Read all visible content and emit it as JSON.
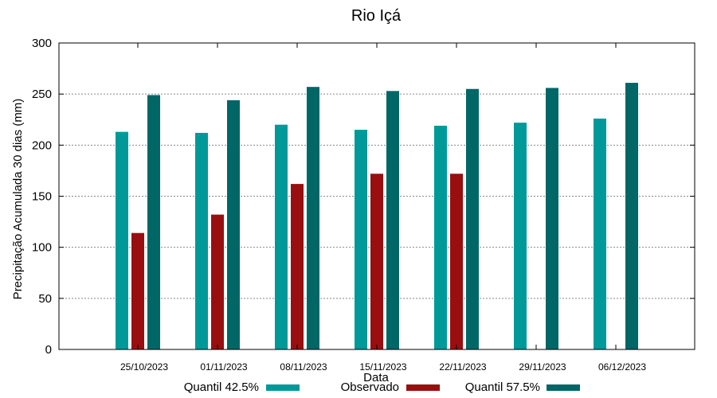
{
  "chart_data": {
    "type": "bar",
    "title": "Rio Içá",
    "xlabel": "Data",
    "ylabel": "Precipitação Acumulada 30 dias (mm)",
    "ylim": [
      0,
      300
    ],
    "yticks": [
      0,
      50,
      100,
      150,
      200,
      250,
      300
    ],
    "grid": true,
    "legend_position": "bottom",
    "categories": [
      "25/10/2023",
      "01/11/2023",
      "08/11/2023",
      "15/11/2023",
      "22/11/2023",
      "29/11/2023",
      "06/12/2023"
    ],
    "series": [
      {
        "name": "Quantil 42.5%",
        "color": "#009999",
        "values": [
          213,
          212,
          220,
          215,
          219,
          222,
          226
        ]
      },
      {
        "name": "Observado",
        "color": "#990f0f",
        "values": [
          114,
          132,
          162,
          172,
          172,
          null,
          null
        ]
      },
      {
        "name": "Quantil 57.5%",
        "color": "#006666",
        "values": [
          249,
          244,
          257,
          253,
          255,
          256,
          261
        ]
      }
    ]
  }
}
